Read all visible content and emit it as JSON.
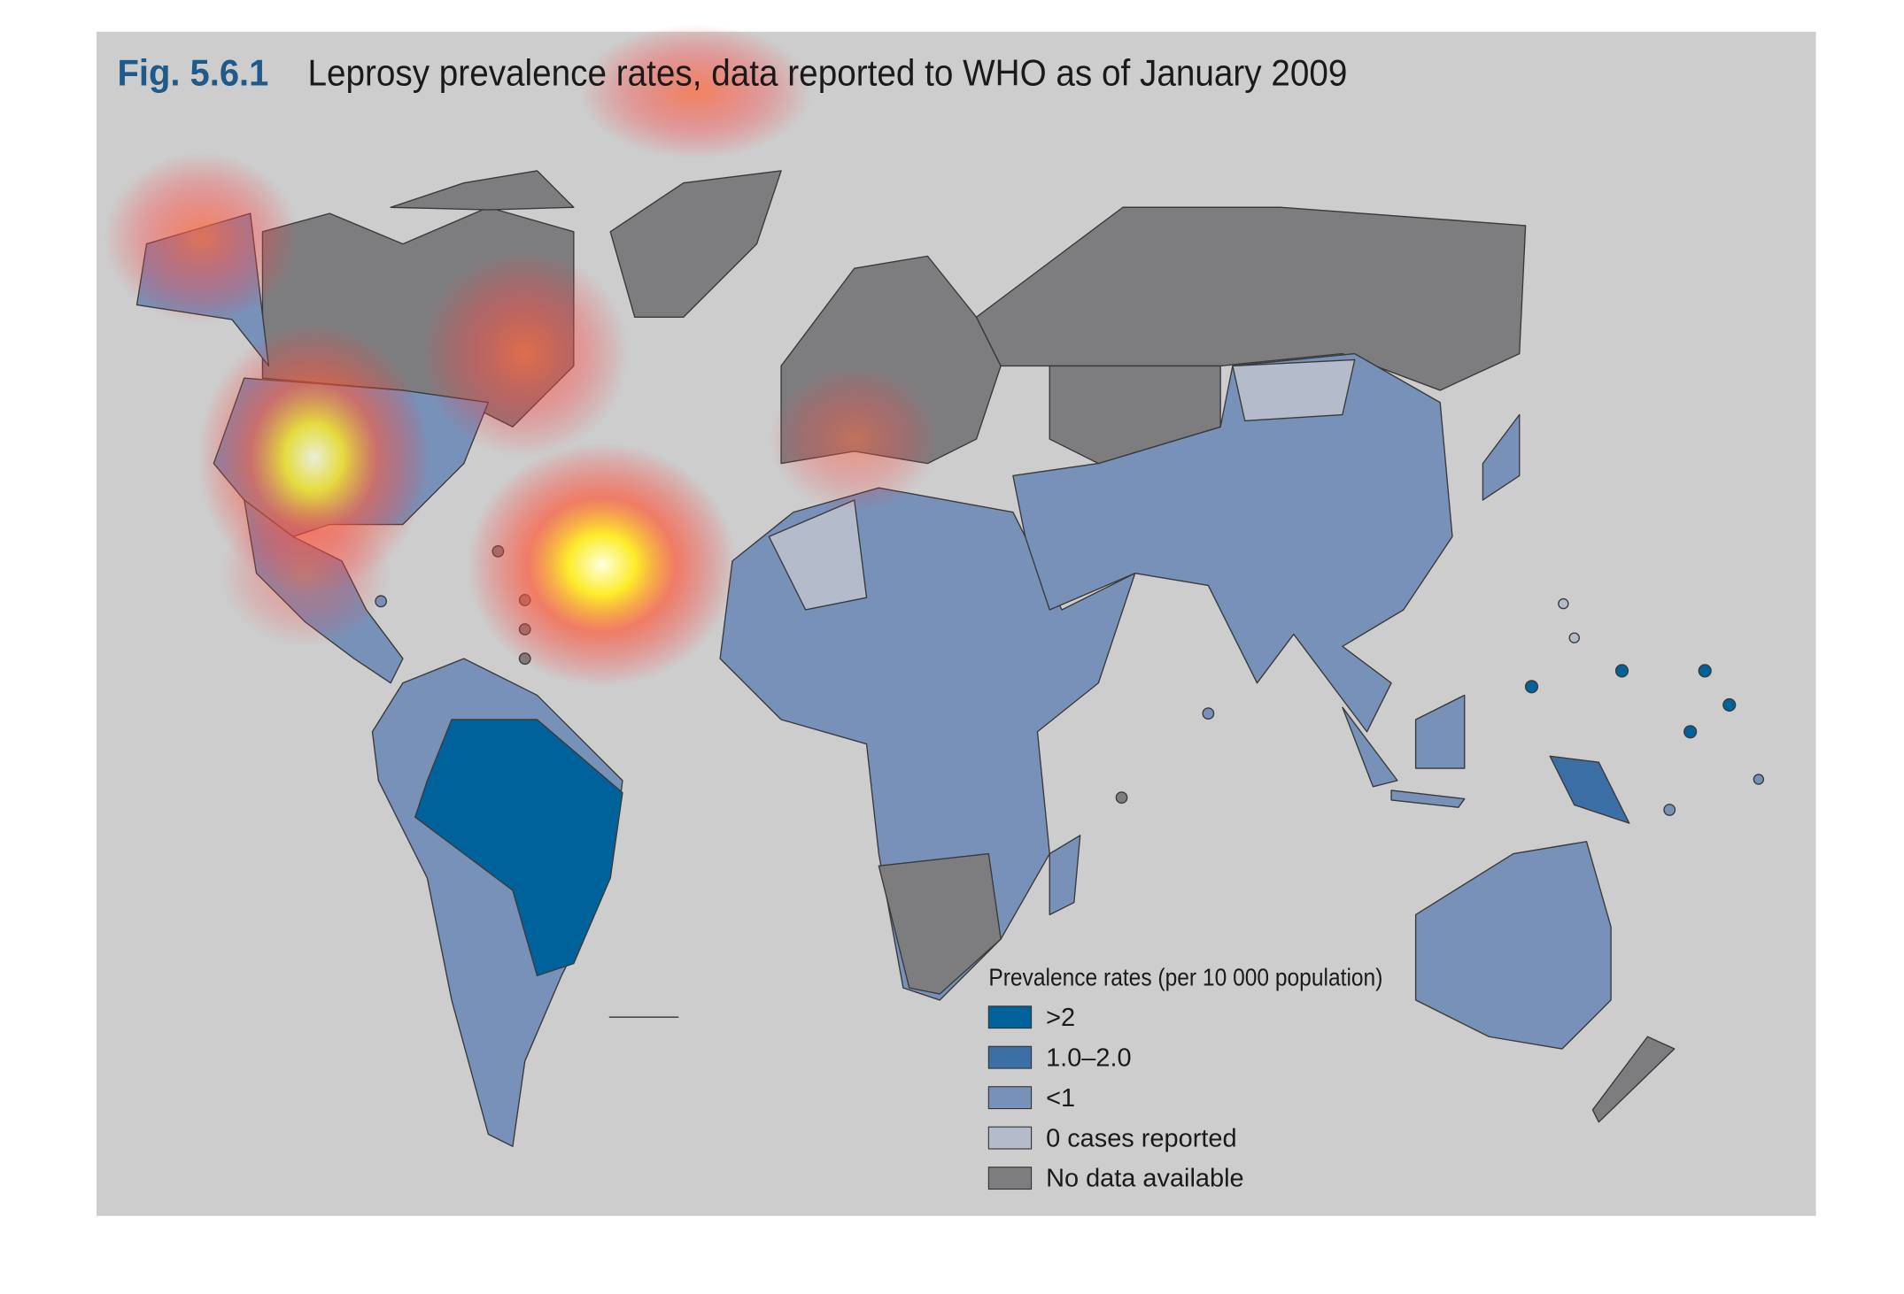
{
  "figure": {
    "label": "Fig. 5.6.1",
    "title": "Leprosy prevalence rates, data reported to WHO as of January 2009"
  },
  "legend": {
    "title": "Prevalence rates (per 10 000 population)",
    "items": [
      {
        "label": ">2",
        "color": "#00629b"
      },
      {
        "label": "1.0–2.0",
        "color": "#3c6fa6"
      },
      {
        "label": "<1",
        "color": "#7891b8"
      },
      {
        "label": "0 cases reported",
        "color": "#b4bccb"
      },
      {
        "label": "No data available",
        "color": "#7d7d80"
      }
    ]
  }
}
